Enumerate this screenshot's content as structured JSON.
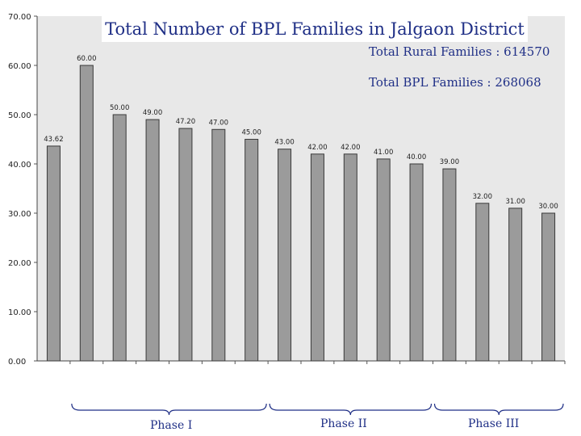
{
  "chart_data": {
    "type": "bar",
    "title": "Total Number of BPL Families in Jalgaon District",
    "annotations": {
      "rural_families": "Total Rural Families : 614570",
      "bpl_families": "Total BPL Families : 268068"
    },
    "values": [
      43.62,
      60.0,
      50.0,
      49.0,
      47.2,
      47.0,
      45.0,
      43.0,
      42.0,
      42.0,
      41.0,
      40.0,
      39.0,
      32.0,
      31.0,
      30.0
    ],
    "data_labels": [
      "43.62",
      "60.00",
      "50.00",
      "49.00",
      "47.20",
      "47.00",
      "45.00",
      "43.00",
      "42.00",
      "42.00",
      "41.00",
      "40.00",
      "39.00",
      "32.00",
      "31.00",
      "30.00"
    ],
    "ylim": [
      0,
      70
    ],
    "y_ticks": [
      "0.00",
      "10.00",
      "20.00",
      "30.00",
      "40.00",
      "50.00",
      "60.00",
      "70.00"
    ],
    "phases": [
      {
        "label": "Phase I",
        "start": 1,
        "end": 6
      },
      {
        "label": "Phase II",
        "start": 7,
        "end": 11
      },
      {
        "label": "Phase III",
        "start": 12,
        "end": 15
      }
    ],
    "colors": {
      "bar": "#9b9b9b",
      "bar_edge": "#3a3a3a",
      "text": "#1f2f86",
      "bg": "#e8e8e8"
    }
  }
}
